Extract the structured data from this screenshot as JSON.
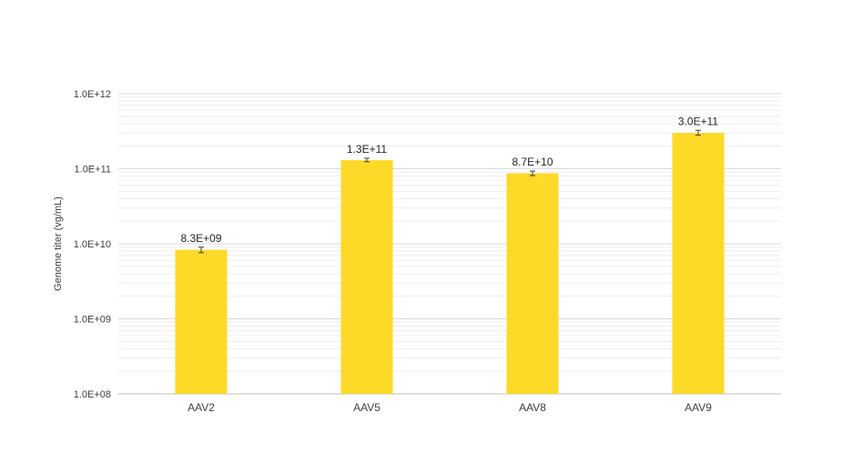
{
  "chart_data": {
    "type": "bar",
    "title": "",
    "xlabel": "",
    "ylabel": "Genome titer (vg/mL)",
    "y_scale": "log",
    "ylim": [
      100000000.0,
      1000000000000.0
    ],
    "y_ticks": [
      100000000.0,
      1000000000.0,
      10000000000.0,
      100000000000.0,
      1000000000000.0
    ],
    "y_tick_labels": [
      "1.0E+08",
      "1.0E+09",
      "1.0E+10",
      "1.0E+11",
      "1.0E+12"
    ],
    "categories": [
      "AAV2",
      "AAV5",
      "AAV8",
      "AAV9"
    ],
    "values": [
      8300000000.0,
      130000000000.0,
      87000000000.0,
      300000000000.0
    ],
    "value_labels": [
      "8.3E+09",
      "1.3E+11",
      "8.7E+10",
      "3.0E+11"
    ],
    "error_low": [
      7600000000.0,
      124000000000.0,
      81000000000.0,
      280000000000.0
    ],
    "error_high": [
      9000000000.0,
      138000000000.0,
      93000000000.0,
      325000000000.0
    ],
    "grid": true,
    "legend": "none",
    "colors": {
      "bar": "#FDD928",
      "grid_major": "#D9D9D9",
      "grid_minor": "#EDEDED",
      "axis": "#BFBFBF",
      "error": "#404040"
    }
  }
}
